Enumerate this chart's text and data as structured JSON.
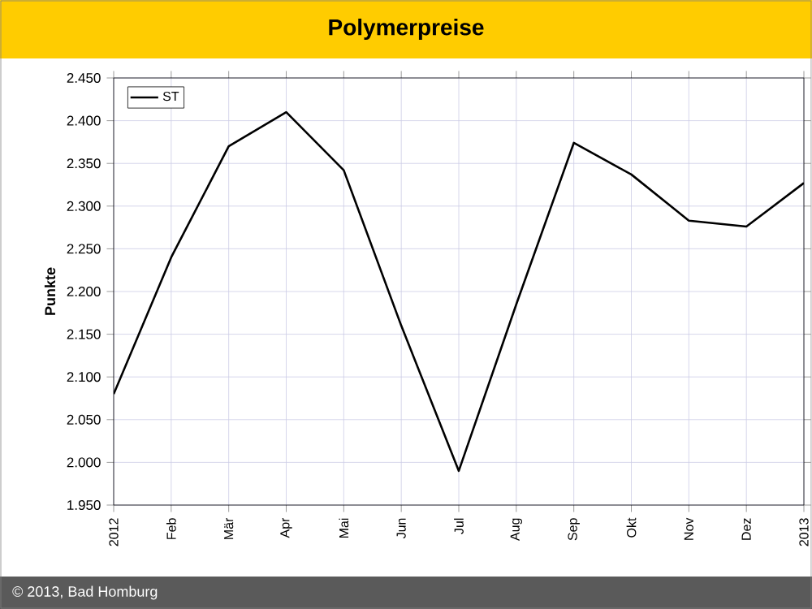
{
  "chart_data": {
    "type": "line",
    "title": "Polymerpreise",
    "ylabel": "Punkte",
    "categories": [
      "2012",
      "Feb",
      "Mär",
      "Apr",
      "Mai",
      "Jun",
      "Jul",
      "Aug",
      "Sep",
      "Okt",
      "Nov",
      "Dez",
      "2013"
    ],
    "series": [
      {
        "name": "ST",
        "color": "#000000",
        "values": [
          2080,
          2240,
          2370,
          2410,
          2342,
          2160,
          1990,
          2185,
          2374,
          2337,
          2283,
          2276,
          2327
        ]
      }
    ],
    "ylim": [
      1950,
      2450
    ],
    "yticks": [
      {
        "value": 1950,
        "label": "1.950"
      },
      {
        "value": 2000,
        "label": "2.000"
      },
      {
        "value": 2050,
        "label": "2.050"
      },
      {
        "value": 2100,
        "label": "2.100"
      },
      {
        "value": 2150,
        "label": "2.150"
      },
      {
        "value": 2200,
        "label": "2.200"
      },
      {
        "value": 2250,
        "label": "2.250"
      },
      {
        "value": 2300,
        "label": "2.300"
      },
      {
        "value": 2350,
        "label": "2.350"
      },
      {
        "value": 2400,
        "label": "2.400"
      },
      {
        "value": 2450,
        "label": "2.450"
      }
    ],
    "grid": true,
    "legend": "top left",
    "marker": "none",
    "line_style": "solid",
    "annotations": [
      "© 2013, Bad Homburg"
    ]
  }
}
